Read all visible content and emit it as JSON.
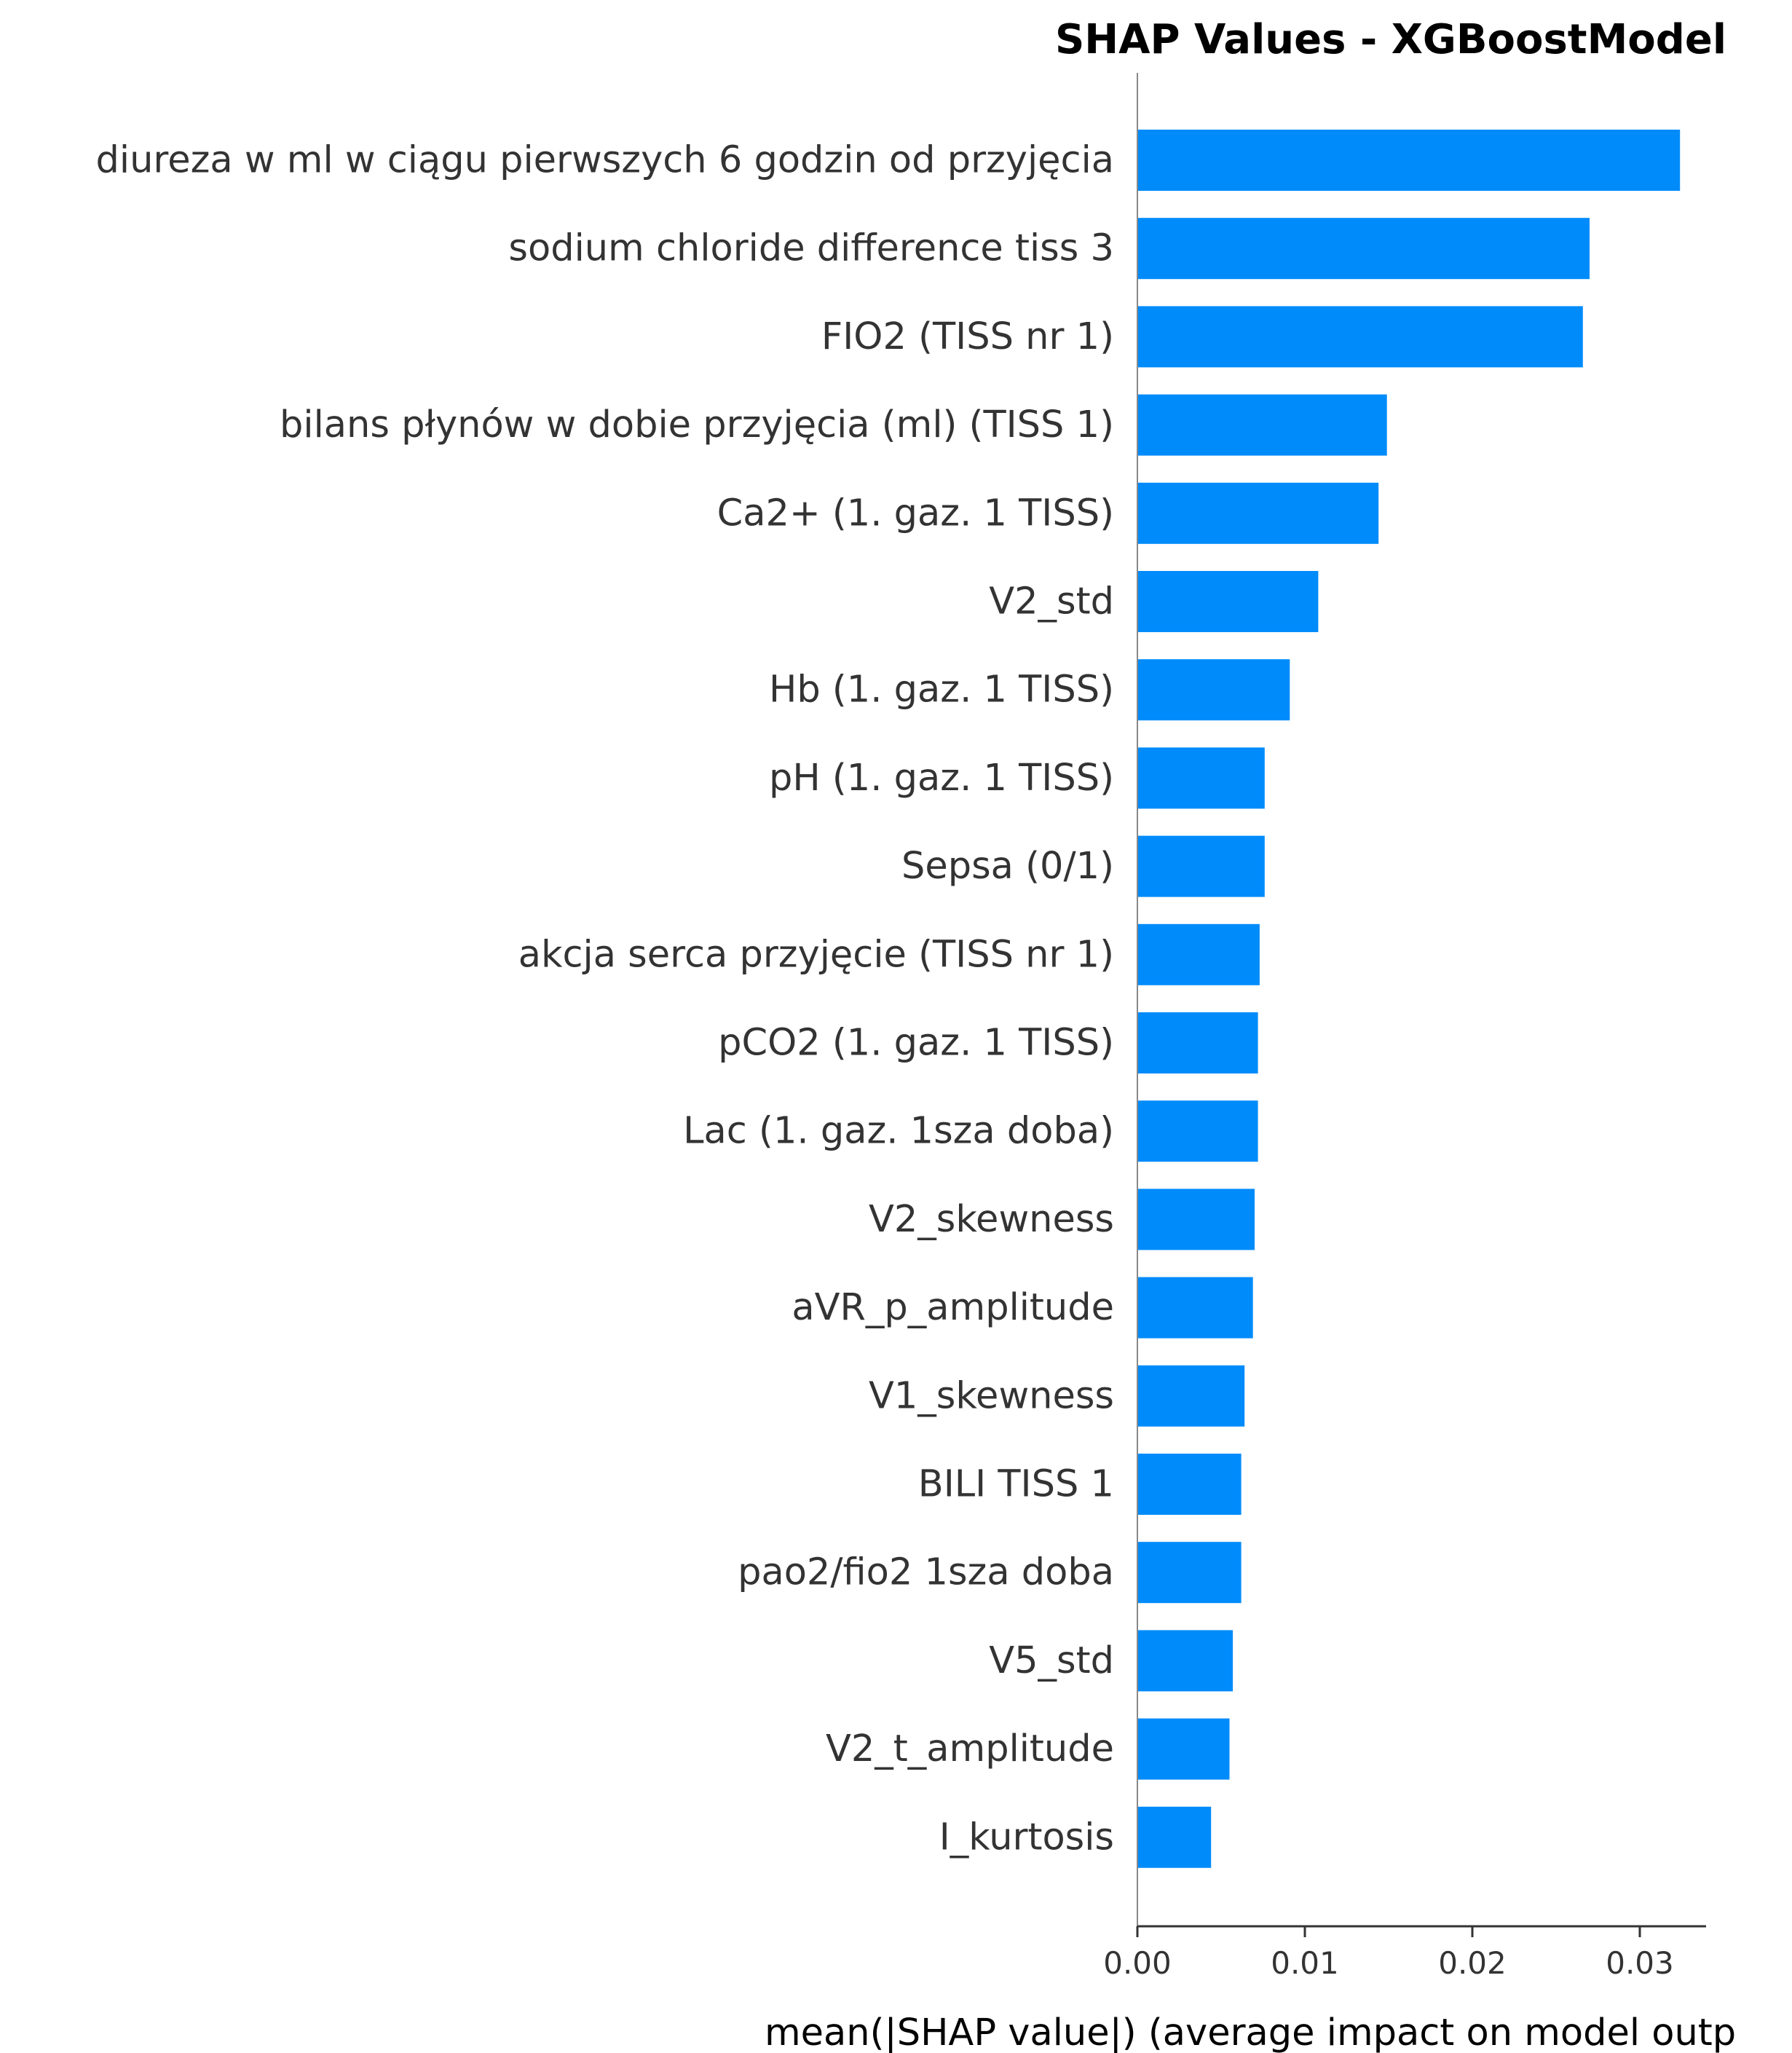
{
  "chart_data": {
    "type": "bar",
    "orientation": "horizontal",
    "title": "SHAP Values - XGBoostModel",
    "xlabel": "mean(|SHAP value|) (average impact on model outp",
    "ylabel": "",
    "xlim": [
      0,
      0.034
    ],
    "xticks": [
      0.0,
      0.01,
      0.02,
      0.03
    ],
    "xtick_labels": [
      "0.00",
      "0.01",
      "0.02",
      "0.03"
    ],
    "grid": false,
    "legend": "none",
    "bar_color": "#008bfb",
    "categories": [
      "diureza w ml w ciągu pierwszych 6 godzin od przyjęcia",
      "sodium chloride difference tiss 3",
      "FIO2 (TISS nr 1)",
      "bilans płynów w dobie przyjęcia (ml) (TISS 1)",
      "Ca2+ (1. gaz. 1 TISS)",
      "V2_std",
      "Hb (1. gaz. 1 TISS)",
      "pH (1. gaz. 1 TISS)",
      "Sepsa (0/1)",
      "akcja serca przyjęcie (TISS nr 1)",
      "pCO2 (1. gaz. 1 TISS)",
      "Lac (1. gaz. 1sza doba)",
      "V2_skewness",
      "aVR_p_amplitude",
      "V1_skewness",
      "BILI TISS 1",
      "pao2/fio2 1sza doba",
      "V5_std",
      "V2_t_amplitude",
      "I_kurtosis"
    ],
    "values": [
      0.0324,
      0.027,
      0.0266,
      0.0149,
      0.0144,
      0.0108,
      0.0091,
      0.0076,
      0.0076,
      0.0073,
      0.0072,
      0.0072,
      0.007,
      0.0069,
      0.0064,
      0.0062,
      0.0062,
      0.0057,
      0.0055,
      0.0044
    ]
  }
}
